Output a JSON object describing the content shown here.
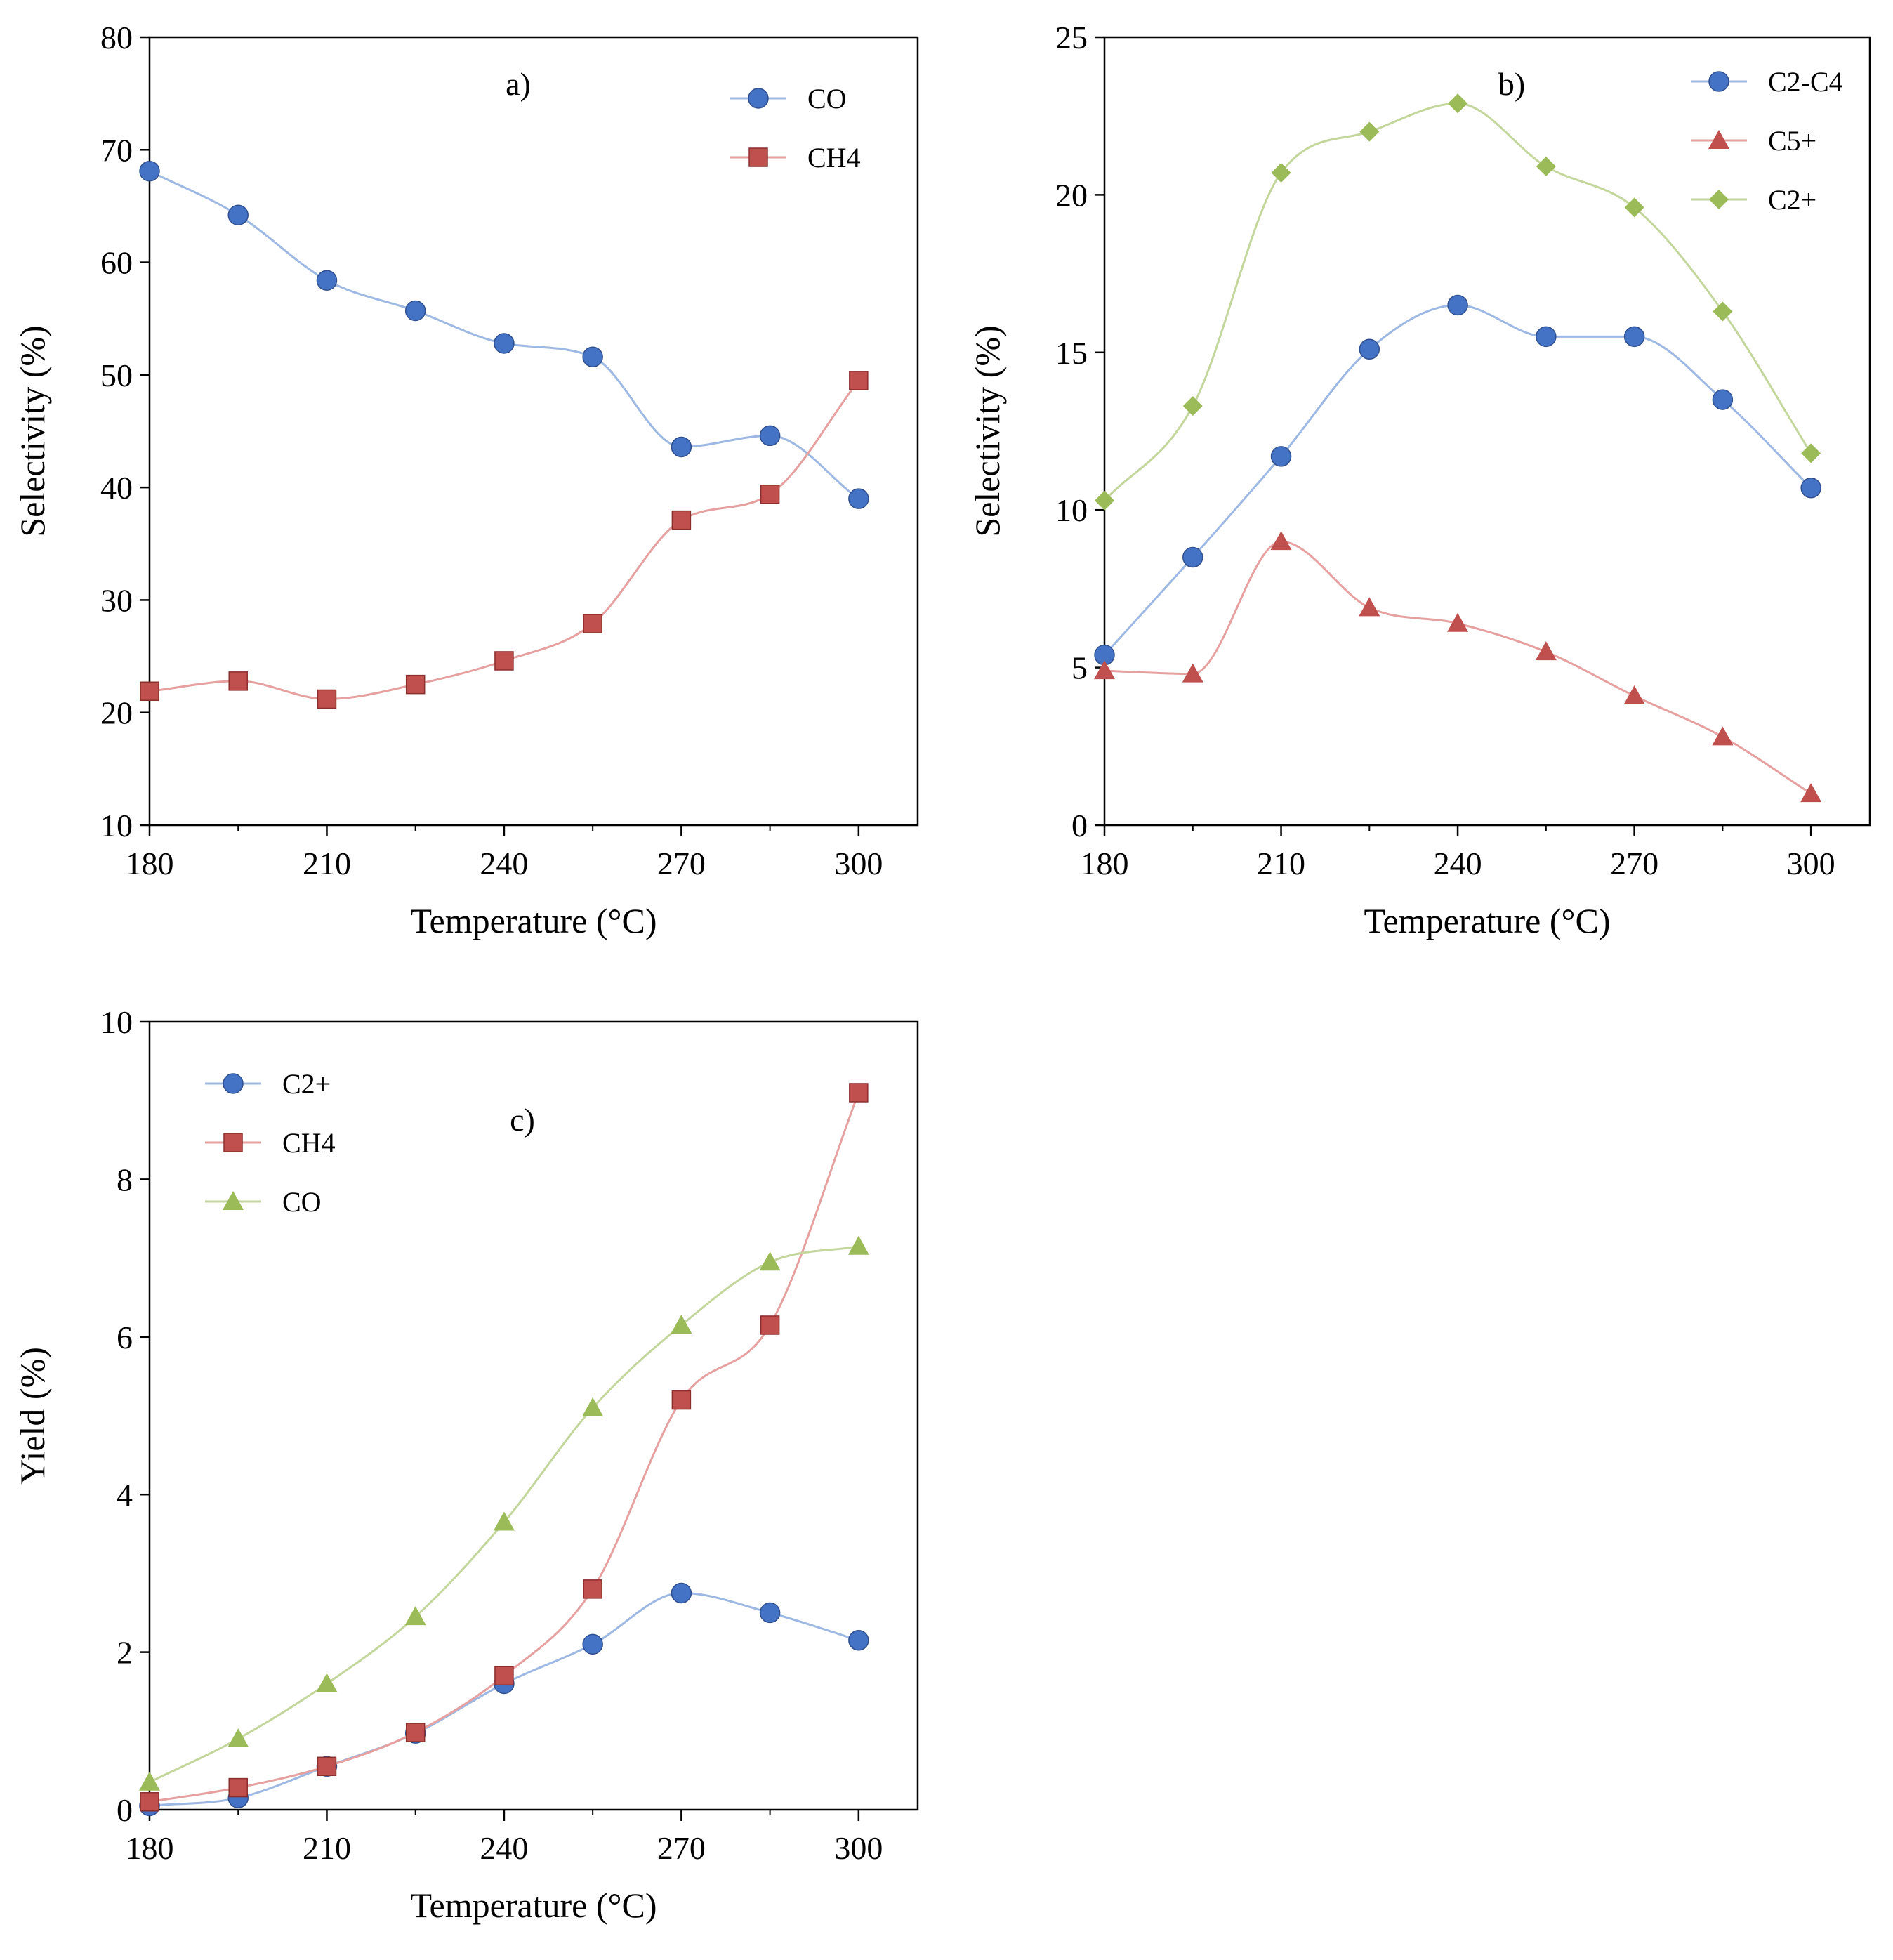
{
  "chart_data": [
    {
      "type": "line",
      "panel_label": "a)",
      "xlabel": "Temperature (°C)",
      "ylabel": "Selectivity (%)",
      "xlim": [
        180,
        310
      ],
      "ylim": [
        10,
        80
      ],
      "xticks": [
        180,
        210,
        240,
        270,
        300
      ],
      "yticks": [
        10,
        20,
        30,
        40,
        50,
        60,
        70,
        80
      ],
      "x": [
        180,
        195,
        210,
        225,
        240,
        255,
        270,
        285,
        300
      ],
      "legend_position": "top-right",
      "series": [
        {
          "name": "CO",
          "marker": "circle",
          "color": "#4472C4",
          "line_color": "#9DB9E3",
          "values": [
            68.1,
            64.2,
            58.4,
            55.7,
            52.8,
            51.6,
            43.6,
            44.6,
            39.0
          ]
        },
        {
          "name": "CH4",
          "marker": "square",
          "color": "#C0504D",
          "line_color": "#E6A0A0",
          "values": [
            21.9,
            22.8,
            21.2,
            22.5,
            24.6,
            27.9,
            37.1,
            39.4,
            49.5
          ]
        }
      ]
    },
    {
      "type": "line",
      "panel_label": "b)",
      "xlabel": "Temperature (°C)",
      "ylabel": "Selectivity (%)",
      "xlim": [
        180,
        310
      ],
      "ylim": [
        0,
        25
      ],
      "xticks": [
        180,
        210,
        240,
        270,
        300
      ],
      "yticks": [
        0,
        5,
        10,
        15,
        20,
        25
      ],
      "x": [
        180,
        195,
        210,
        225,
        240,
        255,
        270,
        285,
        300
      ],
      "legend_position": "top-right",
      "series": [
        {
          "name": "C2-C4",
          "marker": "circle",
          "color": "#4472C4",
          "line_color": "#9DB9E3",
          "values": [
            5.4,
            8.5,
            11.7,
            15.1,
            16.5,
            15.5,
            15.5,
            13.5,
            10.7
          ]
        },
        {
          "name": "C5+",
          "marker": "triangle",
          "color": "#C0504D",
          "line_color": "#E6A0A0",
          "values": [
            4.9,
            4.8,
            9.0,
            6.9,
            6.4,
            5.5,
            4.1,
            2.8,
            1.0
          ]
        },
        {
          "name": "C2+",
          "marker": "diamond",
          "color": "#9BBB59",
          "line_color": "#C3D69B",
          "values": [
            10.3,
            13.3,
            20.7,
            22.0,
            22.9,
            20.9,
            19.6,
            16.3,
            11.8
          ]
        }
      ]
    },
    {
      "type": "line",
      "panel_label": "c)",
      "xlabel": "Temperature  (°C)",
      "ylabel": "Yield  (%)",
      "xlim": [
        180,
        310
      ],
      "ylim": [
        0,
        10
      ],
      "xticks": [
        180,
        210,
        240,
        270,
        300
      ],
      "yticks": [
        0,
        2,
        4,
        6,
        8,
        10
      ],
      "x": [
        180,
        195,
        210,
        225,
        240,
        255,
        270,
        285,
        300
      ],
      "legend_position": "top-left",
      "series": [
        {
          "name": "C2+",
          "marker": "circle",
          "color": "#4472C4",
          "line_color": "#9DB9E3",
          "values": [
            0.05,
            0.15,
            0.55,
            0.97,
            1.6,
            2.1,
            2.75,
            2.5,
            2.15
          ]
        },
        {
          "name": "CH4",
          "marker": "square",
          "color": "#C0504D",
          "line_color": "#E6A0A0",
          "values": [
            0.1,
            0.28,
            0.55,
            0.98,
            1.7,
            2.8,
            5.2,
            6.15,
            9.1
          ]
        },
        {
          "name": "CO",
          "marker": "triangle",
          "color": "#9BBB59",
          "line_color": "#C3D69B",
          "values": [
            0.35,
            0.9,
            1.6,
            2.45,
            3.65,
            5.1,
            6.15,
            6.95,
            7.15
          ]
        }
      ]
    }
  ]
}
